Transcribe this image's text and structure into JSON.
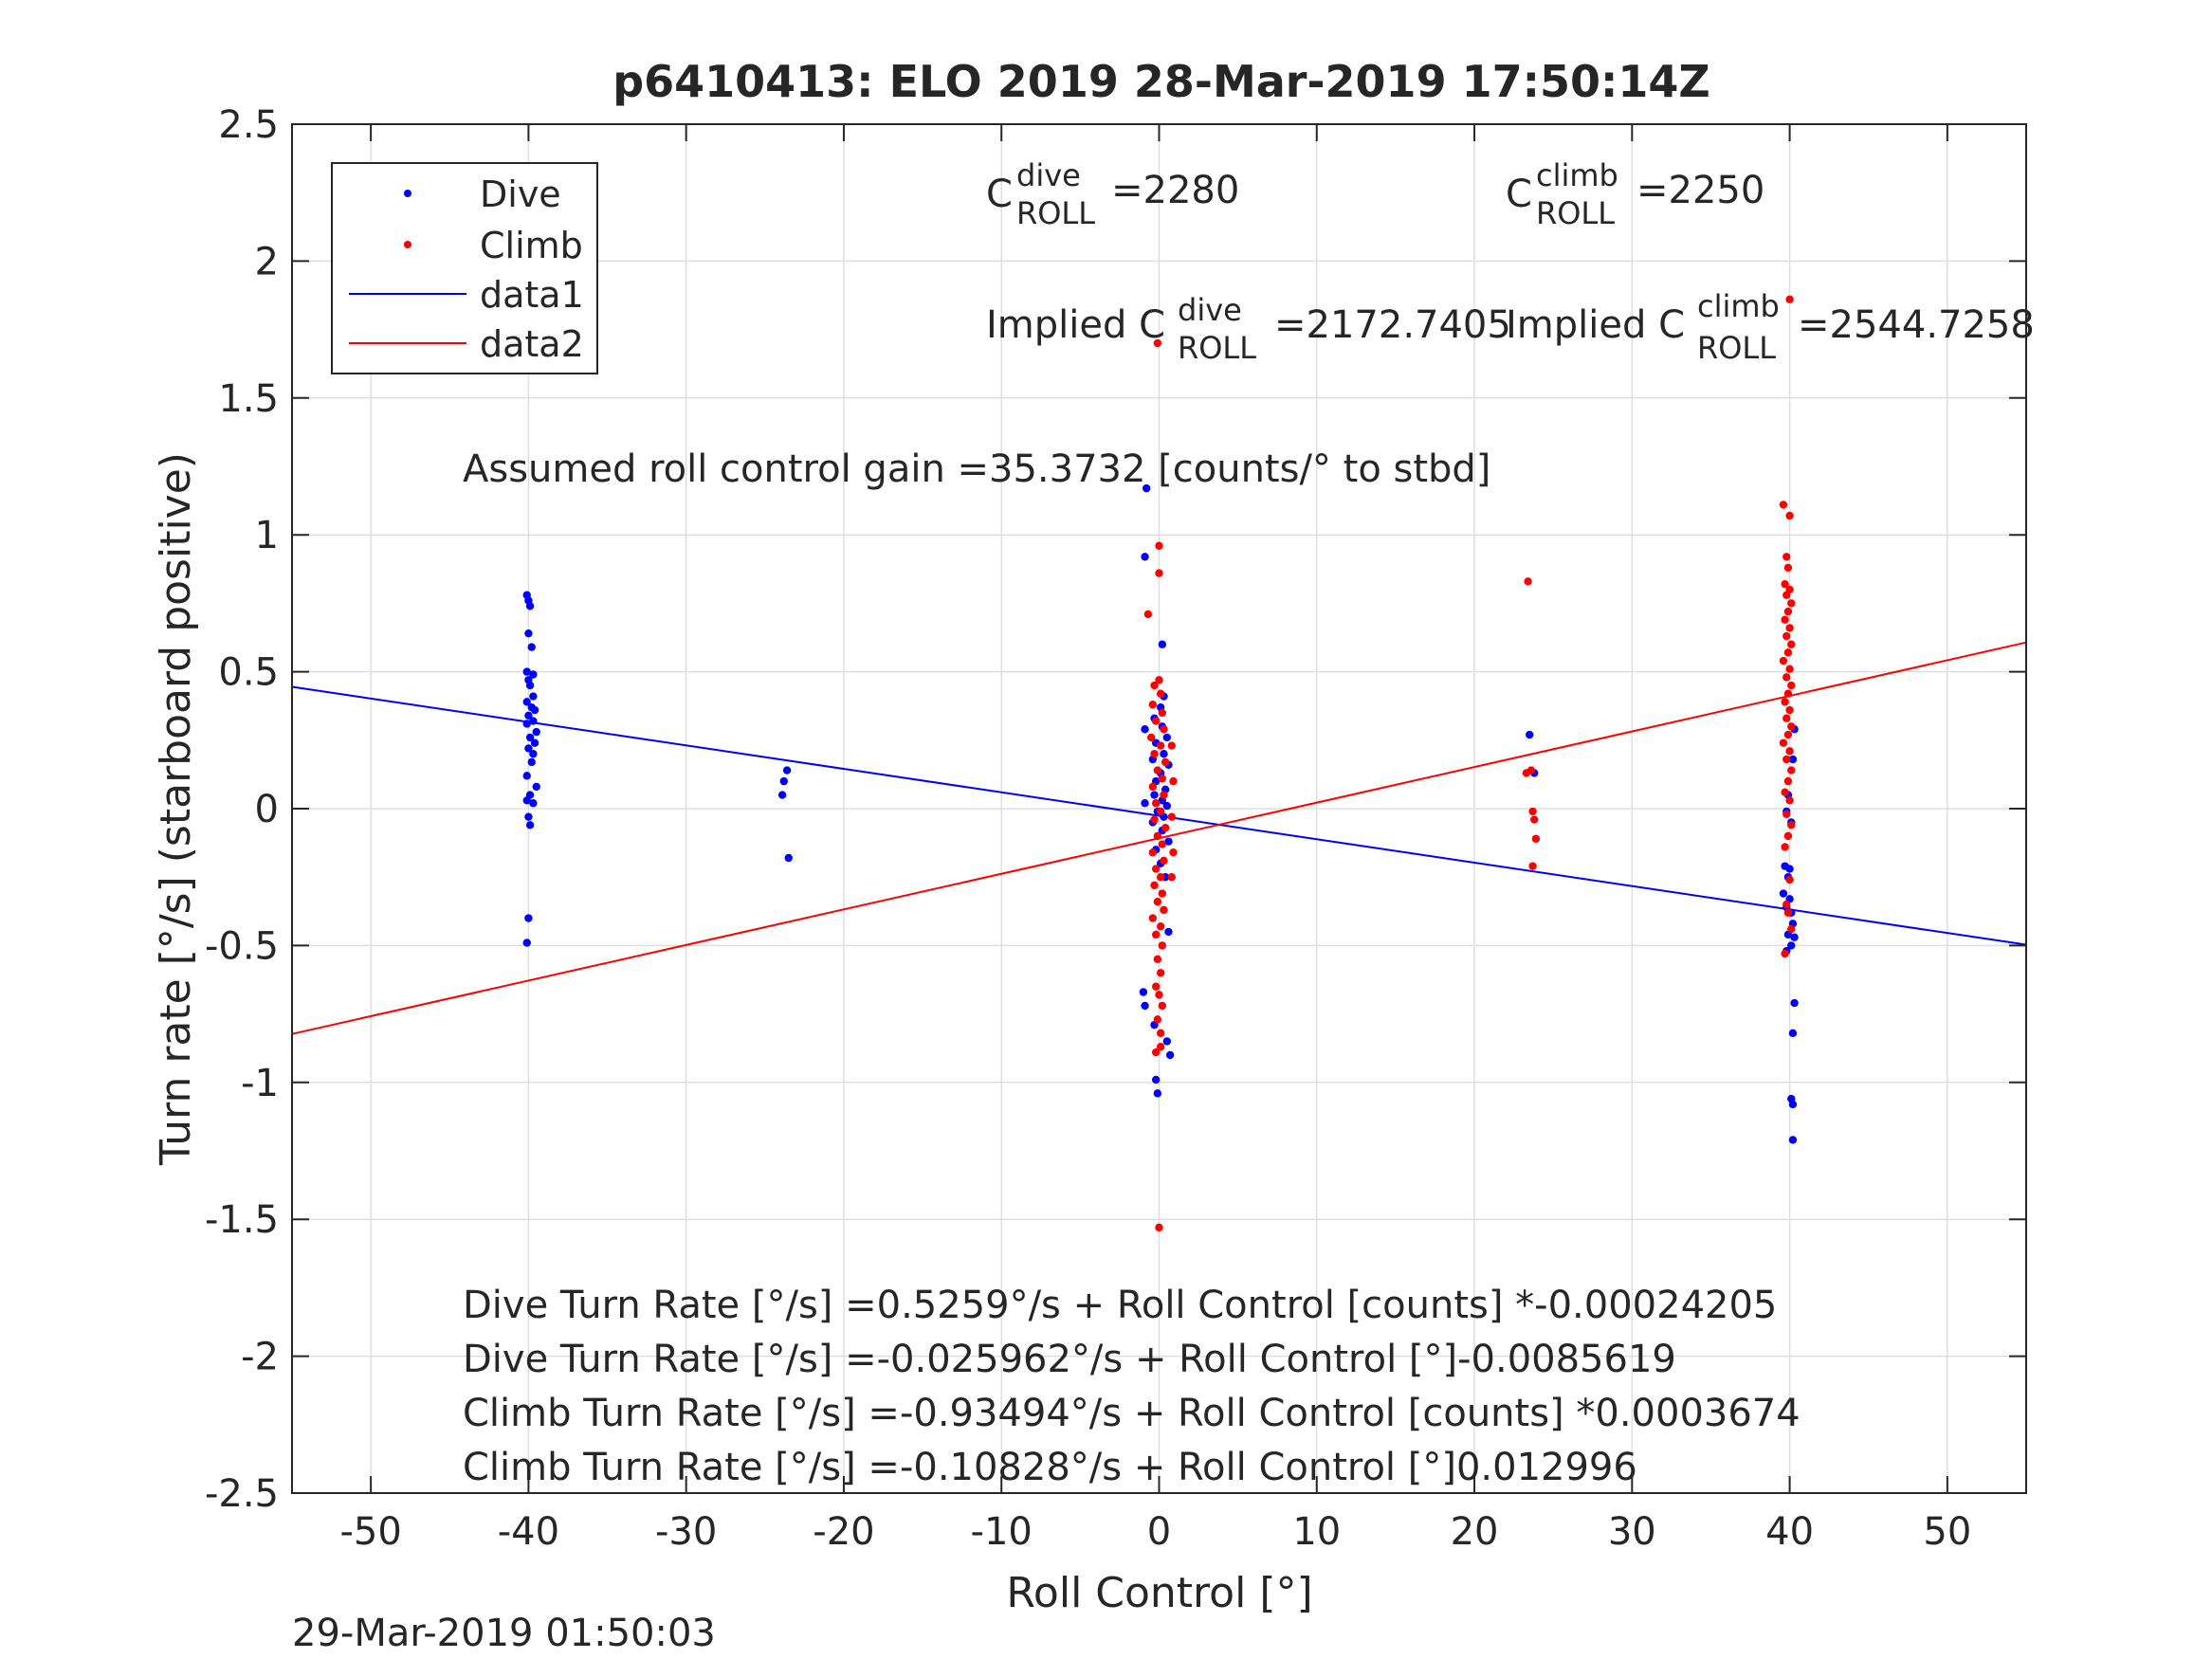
{
  "chart_data": {
    "type": "scatter",
    "title": "p6410413: ELO 2019 28-Mar-2019 17:50:14Z",
    "xlabel": "Roll Control [°]",
    "ylabel": "Turn rate [°/s] (starboard positive)",
    "xlim": [
      -55,
      55
    ],
    "ylim": [
      -2.5,
      2.5
    ],
    "xticks": [
      -50,
      -40,
      -30,
      -20,
      -10,
      0,
      10,
      20,
      30,
      40,
      50
    ],
    "xtick_labels": [
      "-50",
      "-40",
      "-30",
      "-20",
      "-10",
      "0",
      "10",
      "20",
      "30",
      "40",
      "50"
    ],
    "yticks": [
      2.5,
      2,
      1.5,
      1,
      0.5,
      0,
      -0.5,
      -1,
      -1.5,
      -2,
      -2.5
    ],
    "ytick_labels": [
      "2.5",
      "2",
      "1.5",
      "1",
      "0.5",
      "0",
      "-0.5",
      "-1",
      "-1.5",
      "-2",
      "-2.5"
    ],
    "grid": true,
    "legend_position": "top-left",
    "timestamp": "29-Mar-2019 01:50:03",
    "legend": [
      {
        "label": "Dive",
        "kind": "marker",
        "color": "#0000ff"
      },
      {
        "label": "Climb",
        "kind": "marker",
        "color": "#ff0000"
      },
      {
        "label": "data1",
        "kind": "line",
        "color": "#0000ff"
      },
      {
        "label": "data2",
        "kind": "line",
        "color": "#ff0000"
      }
    ],
    "annotations": {
      "c_dive": {
        "base": "C",
        "sup": "dive",
        "sub": "ROLL",
        "value": "=2280"
      },
      "c_climb": {
        "base": "C",
        "sup": "climb",
        "sub": "ROLL",
        "value": "=2250"
      },
      "implied_dive": {
        "base": "Implied C",
        "sup": "dive",
        "sub": "ROLL",
        "value": "=2172.7405"
      },
      "implied_climb": {
        "base": "Implied C",
        "sup": "climb",
        "sub": "ROLL",
        "value": "=2544.7258"
      },
      "gain": "Assumed roll control gain =35.3732 [counts/° to stbd]",
      "eq1": "Dive Turn Rate [°/s] =0.5259°/s + Roll Control [counts] *-0.00024205",
      "eq2": "Dive Turn Rate [°/s] =-0.025962°/s + Roll Control [°]-0.0085619",
      "eq3": "Climb Turn Rate [°/s] =-0.93494°/s + Roll Control [counts] *0.0003674",
      "eq4": "Climb Turn Rate [°/s] =-0.10828°/s + Roll Control [°]0.012996"
    },
    "series": [
      {
        "name": "Dive",
        "kind": "scatter",
        "color": "#0000ff",
        "points": [
          [
            -40.1,
            0.78
          ],
          [
            -40.0,
            0.76
          ],
          [
            -39.9,
            0.74
          ],
          [
            -40.0,
            0.64
          ],
          [
            -39.8,
            0.59
          ],
          [
            -40.1,
            0.5
          ],
          [
            -39.7,
            0.49
          ],
          [
            -40.0,
            0.47
          ],
          [
            -39.9,
            0.45
          ],
          [
            -39.7,
            0.41
          ],
          [
            -40.1,
            0.39
          ],
          [
            -39.8,
            0.37
          ],
          [
            -39.6,
            0.36
          ],
          [
            -40.0,
            0.34
          ],
          [
            -39.7,
            0.32
          ],
          [
            -40.1,
            0.31
          ],
          [
            -39.5,
            0.28
          ],
          [
            -39.9,
            0.26
          ],
          [
            -39.6,
            0.24
          ],
          [
            -40.0,
            0.22
          ],
          [
            -39.7,
            0.2
          ],
          [
            -39.8,
            0.17
          ],
          [
            -40.1,
            0.12
          ],
          [
            -39.5,
            0.08
          ],
          [
            -39.9,
            0.05
          ],
          [
            -40.1,
            0.03
          ],
          [
            -39.7,
            0.02
          ],
          [
            -40.0,
            -0.03
          ],
          [
            -39.9,
            -0.06
          ],
          [
            -40.0,
            -0.4
          ],
          [
            -40.1,
            -0.49
          ],
          [
            -23.6,
            0.14
          ],
          [
            -23.8,
            0.1
          ],
          [
            -23.9,
            0.05
          ],
          [
            -23.5,
            -0.18
          ],
          [
            -0.8,
            1.17
          ],
          [
            -0.9,
            0.92
          ],
          [
            0.2,
            0.6
          ],
          [
            0.3,
            0.41
          ],
          [
            0.1,
            0.37
          ],
          [
            -0.3,
            0.33
          ],
          [
            0.2,
            0.3
          ],
          [
            -0.9,
            0.29
          ],
          [
            0.5,
            0.26
          ],
          [
            -0.2,
            0.24
          ],
          [
            0.3,
            0.2
          ],
          [
            -0.4,
            0.18
          ],
          [
            0.6,
            0.16
          ],
          [
            0.1,
            0.13
          ],
          [
            -0.2,
            0.1
          ],
          [
            0.4,
            0.07
          ],
          [
            -0.3,
            0.05
          ],
          [
            0.2,
            0.03
          ],
          [
            -0.9,
            0.02
          ],
          [
            0.5,
            0.01
          ],
          [
            -0.1,
            -0.01
          ],
          [
            0.3,
            -0.03
          ],
          [
            -0.4,
            -0.05
          ],
          [
            0.2,
            -0.08
          ],
          [
            0.6,
            -0.12
          ],
          [
            -0.2,
            -0.15
          ],
          [
            0.1,
            -0.2
          ],
          [
            0.4,
            -0.25
          ],
          [
            0.6,
            -0.45
          ],
          [
            -1.0,
            -0.67
          ],
          [
            -0.9,
            -0.72
          ],
          [
            -0.3,
            -0.79
          ],
          [
            0.5,
            -0.85
          ],
          [
            0.7,
            -0.9
          ],
          [
            -0.2,
            -0.99
          ],
          [
            -0.1,
            -1.04
          ],
          [
            23.5,
            0.27
          ],
          [
            23.8,
            0.13
          ],
          [
            40.3,
            0.29
          ],
          [
            40.2,
            0.18
          ],
          [
            39.9,
            0.05
          ],
          [
            39.8,
            -0.01
          ],
          [
            40.1,
            -0.05
          ],
          [
            39.7,
            -0.21
          ],
          [
            40.0,
            -0.22
          ],
          [
            39.9,
            -0.25
          ],
          [
            39.6,
            -0.31
          ],
          [
            40.0,
            -0.33
          ],
          [
            39.8,
            -0.36
          ],
          [
            40.1,
            -0.38
          ],
          [
            40.2,
            -0.42
          ],
          [
            39.9,
            -0.46
          ],
          [
            40.3,
            -0.47
          ],
          [
            40.1,
            -0.5
          ],
          [
            39.8,
            -0.52
          ],
          [
            40.3,
            -0.71
          ],
          [
            40.2,
            -0.82
          ],
          [
            40.1,
            -1.06
          ],
          [
            40.2,
            -1.08
          ],
          [
            40.2,
            -1.21
          ]
        ]
      },
      {
        "name": "Climb",
        "kind": "scatter",
        "color": "#ff0000",
        "points": [
          [
            -0.1,
            1.7
          ],
          [
            0.0,
            0.96
          ],
          [
            0.0,
            0.86
          ],
          [
            -0.7,
            0.71
          ],
          [
            0.0,
            0.47
          ],
          [
            -0.3,
            0.45
          ],
          [
            0.1,
            0.42
          ],
          [
            -0.4,
            0.38
          ],
          [
            0.2,
            0.35
          ],
          [
            -0.2,
            0.32
          ],
          [
            0.3,
            0.29
          ],
          [
            -0.5,
            0.26
          ],
          [
            0.1,
            0.23
          ],
          [
            -0.3,
            0.2
          ],
          [
            0.4,
            0.17
          ],
          [
            -0.1,
            0.14
          ],
          [
            0.2,
            0.11
          ],
          [
            -0.4,
            0.08
          ],
          [
            0.3,
            0.05
          ],
          [
            -0.2,
            0.02
          ],
          [
            0.1,
            -0.01
          ],
          [
            -0.3,
            -0.04
          ],
          [
            0.4,
            -0.07
          ],
          [
            -0.1,
            -0.1
          ],
          [
            0.2,
            -0.13
          ],
          [
            -0.4,
            -0.16
          ],
          [
            0.3,
            -0.19
          ],
          [
            -0.2,
            -0.22
          ],
          [
            0.1,
            -0.25
          ],
          [
            -0.3,
            -0.28
          ],
          [
            0.2,
            -0.31
          ],
          [
            -0.1,
            -0.34
          ],
          [
            0.3,
            -0.37
          ],
          [
            -0.4,
            -0.4
          ],
          [
            0.1,
            -0.43
          ],
          [
            -0.2,
            -0.46
          ],
          [
            0.2,
            -0.5
          ],
          [
            -0.1,
            -0.55
          ],
          [
            0.1,
            -0.6
          ],
          [
            -0.2,
            -0.65
          ],
          [
            0.0,
            -0.68
          ],
          [
            0.2,
            -0.72
          ],
          [
            -0.1,
            -0.77
          ],
          [
            0.1,
            -0.82
          ],
          [
            -0.2,
            -0.89
          ],
          [
            0.1,
            -0.87
          ],
          [
            0.8,
            0.23
          ],
          [
            0.9,
            0.1
          ],
          [
            0.8,
            -0.03
          ],
          [
            0.9,
            -0.16
          ],
          [
            0.8,
            -0.25
          ],
          [
            0.0,
            -1.53
          ],
          [
            23.4,
            0.83
          ],
          [
            23.3,
            0.13
          ],
          [
            23.6,
            0.14
          ],
          [
            23.7,
            -0.01
          ],
          [
            23.8,
            -0.04
          ],
          [
            23.9,
            -0.11
          ],
          [
            23.7,
            -0.21
          ],
          [
            40.0,
            1.86
          ],
          [
            39.6,
            1.11
          ],
          [
            40.0,
            1.07
          ],
          [
            39.8,
            0.92
          ],
          [
            39.9,
            0.88
          ],
          [
            39.7,
            0.82
          ],
          [
            40.0,
            0.8
          ],
          [
            39.8,
            0.78
          ],
          [
            40.1,
            0.75
          ],
          [
            39.9,
            0.72
          ],
          [
            39.7,
            0.69
          ],
          [
            40.0,
            0.66
          ],
          [
            39.8,
            0.63
          ],
          [
            40.1,
            0.6
          ],
          [
            39.9,
            0.57
          ],
          [
            39.6,
            0.54
          ],
          [
            40.0,
            0.51
          ],
          [
            39.8,
            0.48
          ],
          [
            40.1,
            0.45
          ],
          [
            39.9,
            0.42
          ],
          [
            39.7,
            0.39
          ],
          [
            40.0,
            0.36
          ],
          [
            39.8,
            0.33
          ],
          [
            40.1,
            0.3
          ],
          [
            39.9,
            0.27
          ],
          [
            39.6,
            0.24
          ],
          [
            40.0,
            0.21
          ],
          [
            39.8,
            0.18
          ],
          [
            40.1,
            0.14
          ],
          [
            39.9,
            0.1
          ],
          [
            39.7,
            0.06
          ],
          [
            40.0,
            0.03
          ],
          [
            39.8,
            -0.02
          ],
          [
            40.1,
            -0.06
          ],
          [
            39.9,
            -0.1
          ],
          [
            39.7,
            -0.14
          ],
          [
            40.0,
            -0.26
          ],
          [
            39.8,
            -0.35
          ],
          [
            39.9,
            -0.38
          ],
          [
            40.1,
            -0.44
          ],
          [
            39.7,
            -0.53
          ]
        ]
      },
      {
        "name": "data1",
        "kind": "line",
        "color": "#0000ff",
        "x": [
          -55,
          55
        ],
        "y": [
          0.445,
          -0.497
        ]
      },
      {
        "name": "data2",
        "kind": "line",
        "color": "#ff0000",
        "x": [
          -55,
          55
        ],
        "y": [
          -0.823,
          0.607
        ]
      }
    ]
  }
}
